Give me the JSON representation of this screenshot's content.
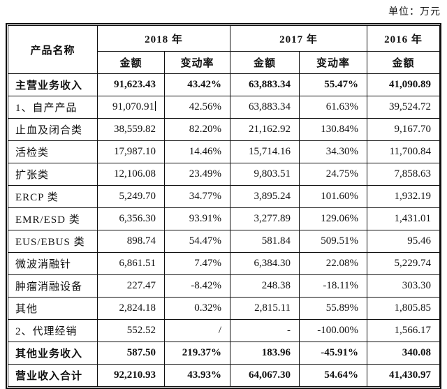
{
  "unit_label": "单位：万元",
  "table": {
    "header": {
      "product_name": "产品名称",
      "year_2018": "2018 年",
      "year_2017": "2017 年",
      "year_2016": "2016 年"
    },
    "subheaders": [
      "金额",
      "变动率",
      "金额",
      "变动率",
      "金额"
    ],
    "rows": [
      {
        "name": "主营业务收入",
        "cells": [
          "91,623.43",
          "43.42%",
          "63,883.34",
          "55.47%",
          "41,090.89"
        ],
        "bold": true
      },
      {
        "name": "1、自产产品",
        "cells": [
          "91,070.91",
          "42.56%",
          "63,883.34",
          "61.63%",
          "39,524.72"
        ],
        "cursor_cell": 0
      },
      {
        "name": "止血及闭合类",
        "cells": [
          "38,559.82",
          "82.20%",
          "21,162.92",
          "130.84%",
          "9,167.70"
        ]
      },
      {
        "name": "活检类",
        "cells": [
          "17,987.10",
          "14.46%",
          "15,714.16",
          "34.30%",
          "11,700.84"
        ]
      },
      {
        "name": "扩张类",
        "cells": [
          "12,106.08",
          "23.49%",
          "9,803.51",
          "24.75%",
          "7,858.63"
        ]
      },
      {
        "name": "ERCP 类",
        "cells": [
          "5,249.70",
          "34.77%",
          "3,895.24",
          "101.60%",
          "1,932.19"
        ]
      },
      {
        "name": "EMR/ESD 类",
        "cells": [
          "6,356.30",
          "93.91%",
          "3,277.89",
          "129.06%",
          "1,431.01"
        ]
      },
      {
        "name": "EUS/EBUS 类",
        "cells": [
          "898.74",
          "54.47%",
          "581.84",
          "509.51%",
          "95.46"
        ]
      },
      {
        "name": "微波消融针",
        "cells": [
          "6,861.51",
          "7.47%",
          "6,384.30",
          "22.08%",
          "5,229.74"
        ]
      },
      {
        "name": "肿瘤消融设备",
        "cells": [
          "227.47",
          "-8.42%",
          "248.38",
          "-18.11%",
          "303.30"
        ]
      },
      {
        "name": "其他",
        "cells": [
          "2,824.18",
          "0.32%",
          "2,815.11",
          "55.89%",
          "1,805.85"
        ]
      },
      {
        "name": "2、代理经销",
        "cells": [
          "552.52",
          "/",
          "-",
          "-100.00%",
          "1,566.17"
        ]
      },
      {
        "name": "其他业务收入",
        "cells": [
          "587.50",
          "219.37%",
          "183.96",
          "-45.91%",
          "340.08"
        ],
        "bold": true
      },
      {
        "name": "营业收入合计",
        "cells": [
          "92,210.93",
          "43.93%",
          "64,067.30",
          "54.64%",
          "41,430.97"
        ],
        "bold": true
      }
    ]
  }
}
